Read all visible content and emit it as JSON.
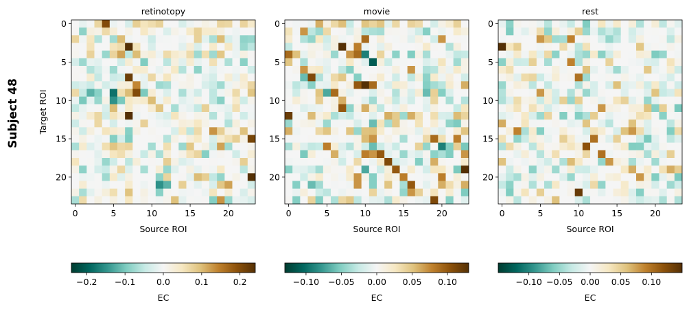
{
  "figure": {
    "row_label": "Subject 48"
  },
  "chart_data": [
    {
      "type": "heatmap",
      "title": "retinotopy",
      "xlabel": "Source ROI",
      "ylabel": "Target ROI",
      "x_ticks": [
        0,
        5,
        10,
        15,
        20
      ],
      "y_ticks": [
        0,
        5,
        10,
        15,
        20
      ],
      "n": 24,
      "colorbar": {
        "label": "EC",
        "vmin": -0.24,
        "vmax": 0.24,
        "ticks": [
          -0.2,
          -0.1,
          0.0,
          0.1,
          0.2
        ],
        "tick_labels": [
          "−0.2",
          "−0.1",
          "0.0",
          "0.1",
          "0.2"
        ]
      },
      "sparse_values": [
        [
          0,
          4,
          0.2
        ],
        [
          0,
          8,
          0.08
        ],
        [
          0,
          20,
          0.07
        ],
        [
          2,
          2,
          0.05
        ],
        [
          2,
          6,
          0.1
        ],
        [
          2,
          19,
          0.1
        ],
        [
          3,
          7,
          0.24
        ],
        [
          4,
          4,
          -0.08
        ],
        [
          4,
          6,
          0.12
        ],
        [
          4,
          8,
          0.1
        ],
        [
          4,
          17,
          0.06
        ],
        [
          4,
          19,
          0.09
        ],
        [
          7,
          7,
          0.22
        ],
        [
          8,
          8,
          0.14
        ],
        [
          9,
          2,
          -0.12
        ],
        [
          9,
          3,
          -0.09
        ],
        [
          9,
          5,
          -0.18
        ],
        [
          9,
          6,
          0.06
        ],
        [
          9,
          7,
          0.1
        ],
        [
          9,
          8,
          0.2
        ],
        [
          10,
          1,
          -0.1
        ],
        [
          10,
          5,
          -0.15
        ],
        [
          10,
          6,
          -0.1
        ],
        [
          10,
          10,
          0.1
        ],
        [
          11,
          5,
          0.1
        ],
        [
          11,
          16,
          -0.05
        ],
        [
          12,
          3,
          0.07
        ],
        [
          12,
          7,
          0.24
        ],
        [
          14,
          18,
          0.13
        ],
        [
          15,
          21,
          0.08
        ],
        [
          15,
          23,
          0.21
        ],
        [
          16,
          4,
          0.06
        ],
        [
          16,
          12,
          0.06
        ],
        [
          16,
          15,
          0.09
        ],
        [
          16,
          19,
          0.12
        ],
        [
          17,
          5,
          0.05
        ],
        [
          18,
          4,
          -0.08
        ],
        [
          18,
          22,
          0.08
        ],
        [
          19,
          9,
          -0.07
        ],
        [
          20,
          16,
          0.1
        ],
        [
          20,
          23,
          0.24
        ],
        [
          21,
          11,
          -0.15
        ],
        [
          21,
          12,
          -0.12
        ],
        [
          21,
          14,
          0.08
        ],
        [
          21,
          19,
          0.09
        ],
        [
          21,
          20,
          0.12
        ],
        [
          22,
          5,
          0.06
        ],
        [
          22,
          11,
          -0.09
        ],
        [
          23,
          19,
          0.13
        ]
      ]
    },
    {
      "type": "heatmap",
      "title": "movie",
      "xlabel": "Source ROI",
      "ylabel": "",
      "x_ticks": [
        0,
        5,
        10,
        15,
        20
      ],
      "y_ticks": [
        0,
        5,
        10,
        15,
        20
      ],
      "n": 24,
      "colorbar": {
        "label": "EC",
        "vmin": -0.13,
        "vmax": 0.13,
        "ticks": [
          -0.1,
          -0.05,
          0.0,
          0.05,
          0.1
        ],
        "tick_labels": [
          "−0.10",
          "−0.05",
          "0.00",
          "0.05",
          "0.10"
        ]
      },
      "sparse_values": [
        [
          0,
          4,
          0.06
        ],
        [
          0,
          10,
          0.05
        ],
        [
          0,
          11,
          0.04
        ],
        [
          0,
          12,
          0.05
        ],
        [
          1,
          2,
          0.07
        ],
        [
          1,
          18,
          -0.05
        ],
        [
          2,
          10,
          0.09
        ],
        [
          2,
          20,
          0.07
        ],
        [
          3,
          7,
          0.13
        ],
        [
          3,
          9,
          0.08
        ],
        [
          4,
          0,
          0.09
        ],
        [
          4,
          8,
          0.07
        ],
        [
          4,
          9,
          0.09
        ],
        [
          4,
          10,
          -0.09
        ],
        [
          4,
          12,
          0.04
        ],
        [
          5,
          11,
          -0.11
        ],
        [
          6,
          2,
          0.07
        ],
        [
          6,
          16,
          0.07
        ],
        [
          7,
          2,
          -0.06
        ],
        [
          7,
          3,
          0.11
        ],
        [
          8,
          9,
          0.1
        ],
        [
          8,
          10,
          0.13
        ],
        [
          8,
          11,
          0.09
        ],
        [
          8,
          18,
          -0.05
        ],
        [
          8,
          23,
          0.06
        ],
        [
          9,
          5,
          -0.07
        ],
        [
          9,
          6,
          0.09
        ],
        [
          9,
          18,
          -0.06
        ],
        [
          10,
          7,
          0.06
        ],
        [
          10,
          11,
          -0.04
        ],
        [
          11,
          7,
          0.1
        ],
        [
          11,
          10,
          0.06
        ],
        [
          12,
          0,
          0.12
        ],
        [
          12,
          13,
          0.06
        ],
        [
          12,
          16,
          0.06
        ],
        [
          12,
          23,
          0.04
        ],
        [
          13,
          11,
          -0.06
        ],
        [
          14,
          0,
          0.06
        ],
        [
          14,
          5,
          0.05
        ],
        [
          14,
          8,
          0.05
        ],
        [
          14,
          23,
          0.05
        ],
        [
          15,
          11,
          0.07
        ],
        [
          15,
          19,
          0.09
        ],
        [
          15,
          22,
          0.08
        ],
        [
          16,
          5,
          0.08
        ],
        [
          16,
          11,
          -0.06
        ],
        [
          16,
          20,
          -0.09
        ],
        [
          16,
          21,
          -0.05
        ],
        [
          17,
          6,
          0.06
        ],
        [
          17,
          10,
          0.08
        ],
        [
          17,
          11,
          0.07
        ],
        [
          17,
          12,
          0.1
        ],
        [
          17,
          23,
          0.07
        ],
        [
          18,
          13,
          0.11
        ],
        [
          18,
          19,
          0.06
        ],
        [
          19,
          10,
          -0.07
        ],
        [
          19,
          14,
          0.1
        ],
        [
          19,
          23,
          0.13
        ],
        [
          20,
          9,
          0.07
        ],
        [
          20,
          11,
          -0.05
        ],
        [
          20,
          15,
          0.08
        ],
        [
          20,
          20,
          0.08
        ],
        [
          21,
          1,
          -0.05
        ],
        [
          21,
          3,
          -0.06
        ],
        [
          21,
          9,
          0.07
        ],
        [
          21,
          11,
          -0.05
        ],
        [
          21,
          13,
          0.05
        ],
        [
          21,
          16,
          0.1
        ],
        [
          21,
          20,
          0.06
        ],
        [
          21,
          23,
          0.06
        ],
        [
          22,
          11,
          0.04
        ],
        [
          22,
          16,
          0.07
        ],
        [
          23,
          1,
          -0.05
        ],
        [
          23,
          4,
          -0.05
        ],
        [
          23,
          19,
          0.11
        ]
      ]
    },
    {
      "type": "heatmap",
      "title": "rest",
      "xlabel": "Source ROI",
      "ylabel": "",
      "x_ticks": [
        0,
        5,
        10,
        15,
        20
      ],
      "y_ticks": [
        0,
        5,
        10,
        15,
        20
      ],
      "n": 24,
      "colorbar": {
        "label": "EC",
        "vmin": -0.15,
        "vmax": 0.15,
        "ticks": [
          -0.1,
          -0.05,
          0.0,
          0.05,
          0.1
        ],
        "tick_labels": [
          "−0.10",
          "−0.05",
          "0.00",
          "0.05",
          "0.10"
        ]
      },
      "sparse_values": [
        [
          0,
          11,
          -0.06
        ],
        [
          0,
          18,
          -0.04
        ],
        [
          1,
          5,
          0.04
        ],
        [
          1,
          10,
          0.05
        ],
        [
          1,
          11,
          -0.05
        ],
        [
          2,
          5,
          0.08
        ],
        [
          2,
          9,
          0.09
        ],
        [
          3,
          0,
          0.15
        ],
        [
          3,
          2,
          0.05
        ],
        [
          3,
          8,
          0.04
        ],
        [
          4,
          10,
          -0.04
        ],
        [
          4,
          11,
          -0.05
        ],
        [
          5,
          9,
          0.09
        ],
        [
          5,
          10,
          -0.04
        ],
        [
          6,
          11,
          0.06
        ],
        [
          7,
          10,
          0.1
        ],
        [
          8,
          0,
          -0.05
        ],
        [
          8,
          10,
          -0.04
        ],
        [
          9,
          5,
          0.08
        ],
        [
          9,
          11,
          -0.05
        ],
        [
          10,
          0,
          -0.04
        ],
        [
          10,
          8,
          0.05
        ],
        [
          10,
          10,
          0.05
        ],
        [
          11,
          13,
          0.08
        ],
        [
          11,
          21,
          0.05
        ],
        [
          12,
          11,
          -0.04
        ],
        [
          13,
          0,
          0.07
        ],
        [
          13,
          17,
          0.06
        ],
        [
          14,
          2,
          0.09
        ],
        [
          14,
          16,
          0.06
        ],
        [
          14,
          17,
          0.08
        ],
        [
          15,
          8,
          0.05
        ],
        [
          15,
          12,
          0.1
        ],
        [
          16,
          11,
          0.12
        ],
        [
          16,
          0,
          -0.04
        ],
        [
          17,
          13,
          0.1
        ],
        [
          17,
          22,
          0.05
        ],
        [
          18,
          14,
          0.08
        ],
        [
          19,
          17,
          0.07
        ],
        [
          19,
          22,
          0.07
        ],
        [
          20,
          18,
          0.08
        ],
        [
          21,
          4,
          -0.04
        ],
        [
          22,
          5,
          0.05
        ],
        [
          22,
          10,
          0.14
        ],
        [
          23,
          7,
          0.06
        ]
      ]
    }
  ]
}
